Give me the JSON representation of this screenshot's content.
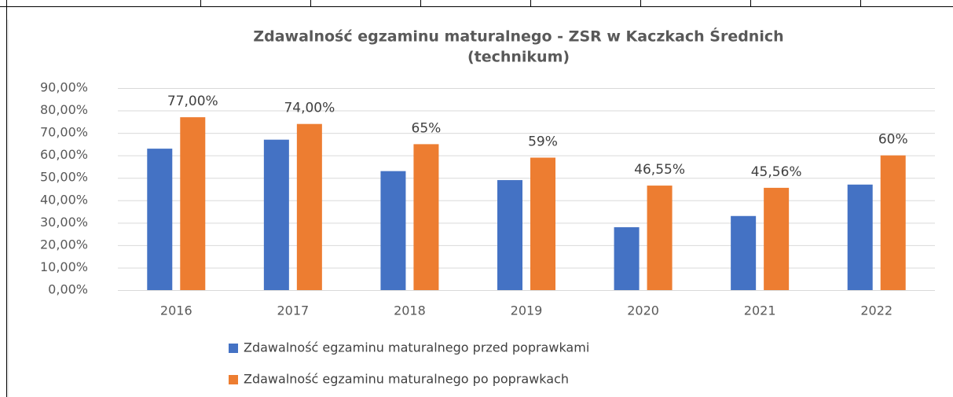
{
  "chart_data": {
    "type": "bar",
    "title": [
      "Zdawalność egzaminu maturalnego - ZSR w Kaczkach Średnich",
      "(technikum)"
    ],
    "categories": [
      "2016",
      "2017",
      "2018",
      "2019",
      "2020",
      "2021",
      "2022"
    ],
    "series": [
      {
        "name": "Zdawalność egzaminu maturalnego przed poprawkami",
        "color": "#4472c4",
        "values": [
          63,
          67,
          53,
          49,
          28,
          33,
          47
        ]
      },
      {
        "name": "Zdawalność egzaminu maturalnego  po poprawkach",
        "color": "#ed7d31",
        "values": [
          77,
          74,
          65,
          59,
          46.55,
          45.56,
          60
        ],
        "value_labels": [
          "77,00%",
          "74,00%",
          "65%",
          "59%",
          "46,55%",
          "45,56%",
          "60%"
        ]
      }
    ],
    "ylim": [
      0,
      90
    ],
    "yticks": [
      {
        "value": 0,
        "label": "0,00%"
      },
      {
        "value": 10,
        "label": "10,00%"
      },
      {
        "value": 20,
        "label": "20,00%"
      },
      {
        "value": 30,
        "label": "30,00%"
      },
      {
        "value": 40,
        "label": "40,00%"
      },
      {
        "value": 50,
        "label": "50,00%"
      },
      {
        "value": 60,
        "label": "60,00%"
      },
      {
        "value": 70,
        "label": "70,00%"
      },
      {
        "value": 80,
        "label": "80,00%"
      },
      {
        "value": 90,
        "label": "90,00%"
      }
    ],
    "grid": true,
    "legend": "bottom"
  }
}
